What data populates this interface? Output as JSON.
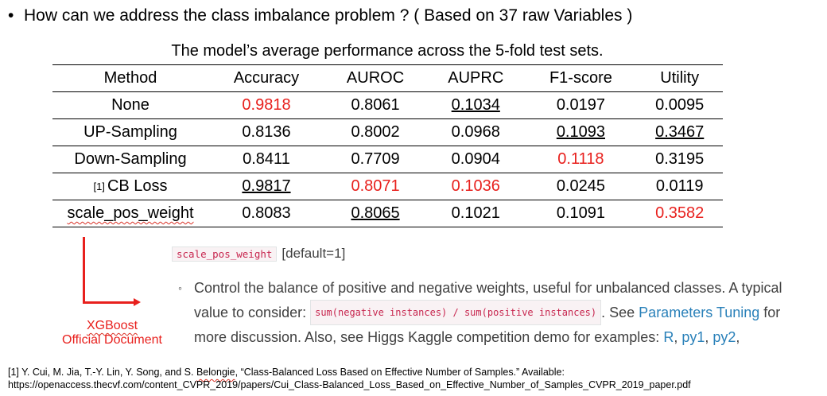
{
  "slide": {
    "bullet_symbol": "•",
    "bullet_text": "How can we address the class imbalance problem ? ( Based on 37 raw Variables )"
  },
  "table": {
    "caption": "The model’s average performance across the 5-fold test sets.",
    "headers": [
      "Method",
      "Accuracy",
      "AUROC",
      "AUPRC",
      "F1-score",
      "Utility"
    ],
    "rows": [
      {
        "ref": "",
        "method": "None",
        "values": [
          "0.9818",
          "0.8061",
          "0.1034",
          "0.0197",
          "0.0095"
        ],
        "red": [
          true,
          false,
          false,
          false,
          false
        ],
        "underline": [
          false,
          false,
          true,
          false,
          false
        ]
      },
      {
        "ref": "",
        "method": "UP-Sampling",
        "values": [
          "0.8136",
          "0.8002",
          "0.0968",
          "0.1093",
          "0.3467"
        ],
        "red": [
          false,
          false,
          false,
          false,
          false
        ],
        "underline": [
          false,
          false,
          false,
          true,
          true
        ]
      },
      {
        "ref": "",
        "method": "Down-Sampling",
        "values": [
          "0.8411",
          "0.7709",
          "0.0904",
          "0.1118",
          "0.3195"
        ],
        "red": [
          false,
          false,
          false,
          true,
          false
        ],
        "underline": [
          false,
          false,
          false,
          false,
          false
        ]
      },
      {
        "ref": "[1]",
        "method": "CB Loss",
        "values": [
          "0.9817",
          "0.8071",
          "0.1036",
          "0.0245",
          "0.0119"
        ],
        "red": [
          false,
          true,
          true,
          false,
          false
        ],
        "underline": [
          true,
          false,
          false,
          false,
          false
        ]
      },
      {
        "ref": "",
        "method": "scale_pos_weight",
        "values": [
          "0.8083",
          "0.8065",
          "0.1021",
          "0.1091",
          "0.3582"
        ],
        "red": [
          false,
          false,
          false,
          false,
          true
        ],
        "underline": [
          false,
          true,
          false,
          false,
          false
        ]
      }
    ],
    "colors": {
      "best": "#e8201d",
      "text": "#000000"
    }
  },
  "annotation": {
    "label_line1": "XGBoost",
    "label_line2": "Official Document",
    "color": "#e8201d"
  },
  "doc_snippet": {
    "param_code": "scale_pos_weight",
    "param_default": "[default=1]",
    "bullet": "◦",
    "text_1": "Control the balance of positive and negative weights, useful for unbalanced classes. A typical value to consider:",
    "code_2": "sum(negative instances) / sum(positive instances)",
    "text_3": ". See",
    "link_params": "Parameters Tuning",
    "text_4": "for more discussion. Also, see Higgs Kaggle competition demo for examples:",
    "link_r": "R",
    "link_py1": "py1",
    "link_py2": "py2",
    "link_color": "#2980b9"
  },
  "footnote": {
    "line1_prefix": "[1] Y. Cui, M. Jia, T.-Y. Lin, Y. Song, and S.",
    "line1_name": "Belongie",
    "line1_rest": ", “Class-Balanced Loss Based on Effective Number of Samples.” Available:",
    "line2": "https://openaccess.thecvf.com/content_CVPR_2019/papers/Cui_Class-Balanced_Loss_Based_on_Effective_Number_of_Samples_CVPR_2019_paper.pdf"
  }
}
